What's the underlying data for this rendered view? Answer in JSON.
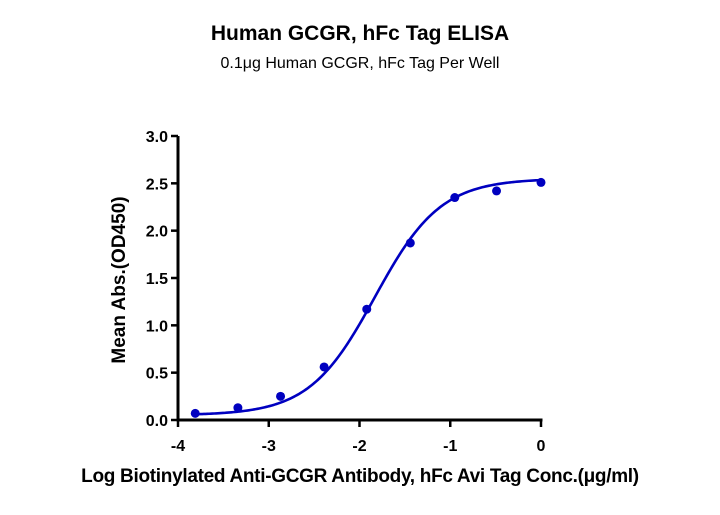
{
  "chart_data": {
    "type": "scatter",
    "title": "Human GCGR, hFc Tag ELISA",
    "subtitle": "0.1μg Human GCGR, hFc Tag Per Well",
    "xlabel": "Log Biotinylated Anti-GCGR Antibody, hFc Avi Tag Conc.(μg/ml)",
    "ylabel": "Mean Abs.(OD450)",
    "xlim": [
      -4,
      0
    ],
    "ylim": [
      0,
      3.0
    ],
    "x_ticks": [
      -4,
      -3,
      -2,
      -1,
      0
    ],
    "x_tick_labels": [
      "-4",
      "-3",
      "-2",
      "-1",
      "0"
    ],
    "y_ticks": [
      0,
      0.5,
      1.0,
      1.5,
      2.0,
      2.5,
      3.0
    ],
    "y_tick_labels": [
      "0.0",
      "0.5",
      "1.0",
      "1.5",
      "2.0",
      "2.5",
      "3.0"
    ],
    "grid": false,
    "legend": null,
    "series": [
      {
        "name": "Mean Abs.",
        "color": "#0000c0",
        "x": [
          -3.81,
          -3.34,
          -2.87,
          -2.39,
          -1.92,
          -1.44,
          -0.95,
          -0.49,
          0.0
        ],
        "y": [
          0.07,
          0.13,
          0.25,
          0.56,
          1.17,
          1.87,
          2.35,
          2.42,
          2.51
        ]
      }
    ],
    "fit": {
      "model": "4PL sigmoid",
      "bottom": 0.05,
      "top": 2.55,
      "log_ec50": -1.83,
      "hill": 1.2
    }
  }
}
